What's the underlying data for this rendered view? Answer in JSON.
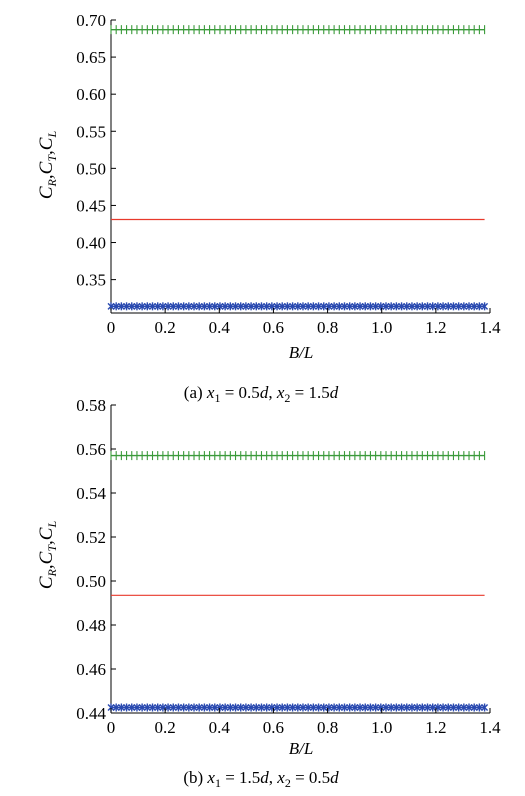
{
  "chart_data": [
    {
      "type": "line",
      "caption": {
        "prefix": "(a) ",
        "v1": "x",
        "s1": "1",
        "eq1": " = 0.5",
        "u1": "d",
        "sep": ", ",
        "v2": "x",
        "s2": "2",
        "eq2": " = 1.5",
        "u2": "d"
      },
      "xlabel": "B/L",
      "ylabel": {
        "c1": "C",
        "s1": "R",
        "c2": "C",
        "s2": "T",
        "c3": "C",
        "s3": "L"
      },
      "xlim": [
        0,
        1.4
      ],
      "ylim": [
        0.305,
        0.7
      ],
      "xticks": [
        "0",
        "0.2",
        "0.4",
        "0.6",
        "0.8",
        "1.0",
        "1.2",
        "1.4"
      ],
      "yticks": [
        "0.35",
        "0.40",
        "0.45",
        "0.50",
        "0.55",
        "0.60",
        "0.65",
        "0.70"
      ],
      "grid": false,
      "x": [
        0,
        1.38
      ],
      "series": [
        {
          "values": [
            0.687,
            0.687
          ],
          "color": "#3a9a3a",
          "marker": "plus"
        },
        {
          "values": [
            0.431,
            0.431
          ],
          "color": "#e8392b",
          "marker": "none"
        },
        {
          "values": [
            0.314,
            0.314
          ],
          "color": "#2a4ab0",
          "marker": "star"
        }
      ]
    },
    {
      "type": "line",
      "caption": {
        "prefix": "(b) ",
        "v1": "x",
        "s1": "1",
        "eq1": " = 1.5",
        "u1": "d",
        "sep": ", ",
        "v2": "x",
        "s2": "2",
        "eq2": " = 0.5",
        "u2": "d"
      },
      "xlabel": "B/L",
      "ylabel": {
        "c1": "C",
        "s1": "R",
        "c2": "C",
        "s2": "T",
        "c3": "C",
        "s3": "L"
      },
      "xlim": [
        0,
        1.4
      ],
      "ylim": [
        0.44,
        0.58
      ],
      "xticks": [
        "0",
        "0.2",
        "0.4",
        "0.6",
        "0.8",
        "1.0",
        "1.2",
        "1.4"
      ],
      "yticks": [
        "0.44",
        "0.46",
        "0.48",
        "0.50",
        "0.52",
        "0.54",
        "0.56",
        "0.58"
      ],
      "grid": false,
      "x": [
        0,
        1.38
      ],
      "series": [
        {
          "values": [
            0.557,
            0.557
          ],
          "color": "#3a9a3a",
          "marker": "plus"
        },
        {
          "values": [
            0.4935,
            0.4935
          ],
          "color": "#e8392b",
          "marker": "none"
        },
        {
          "values": [
            0.4425,
            0.4425
          ],
          "color": "#2a4ab0",
          "marker": "star"
        }
      ]
    }
  ]
}
